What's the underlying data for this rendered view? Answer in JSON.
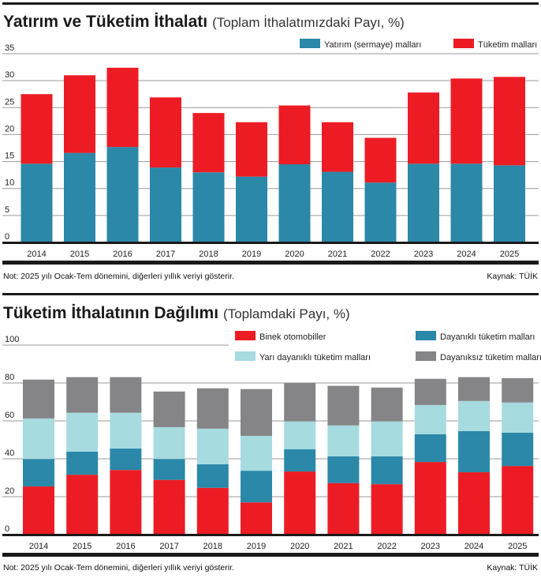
{
  "colors": {
    "teal": "#2b88a8",
    "red": "#ed1c24",
    "light_blue": "#a6dbe0",
    "gray": "#858587",
    "grid": "#9a9a9a",
    "axis": "#1a1a1a"
  },
  "chart_data": [
    {
      "type": "bar",
      "stacked": true,
      "title": "Yatırım ve Tüketim İthalatı",
      "subtitle": "(Toplam İthalatımızdaki Payı, %)",
      "categories": [
        "2014",
        "2015",
        "2016",
        "2017",
        "2018",
        "2019",
        "2020",
        "2021",
        "2022",
        "2023",
        "2024",
        "2025"
      ],
      "series": [
        {
          "name": "Yatırım (sermaye) malları",
          "color": "#2b88a8",
          "values": [
            14.6,
            16.6,
            17.7,
            13.9,
            13.0,
            12.2,
            14.5,
            13.1,
            11.1,
            14.6,
            14.6,
            14.3
          ]
        },
        {
          "name": "Tüketim malları",
          "color": "#ed1c24",
          "values": [
            12.9,
            14.4,
            14.7,
            13.0,
            11.0,
            10.1,
            10.9,
            9.2,
            8.3,
            13.2,
            15.8,
            16.4
          ]
        }
      ],
      "yticks": [
        "0",
        "5",
        "10",
        "15",
        "20",
        "25",
        "30",
        "35"
      ],
      "ylim": [
        0,
        35
      ],
      "grid": true,
      "legend": "top-right",
      "note": "Not: 2025 yılı Ocak-Tem dönemini, diğerleri yıllık veriyi gösterir.",
      "source": "Kaynak: TÜİK"
    },
    {
      "type": "bar",
      "stacked": true,
      "title": "Tüketim İthalatının Dağılımı",
      "subtitle": "(Toplamdaki Payı, %)",
      "categories": [
        "2014",
        "2015",
        "2016",
        "2017",
        "2018",
        "2019",
        "2020",
        "2021",
        "2022",
        "2023",
        "2024",
        "2025"
      ],
      "series": [
        {
          "name": "Binek otomobiller",
          "color": "#ed1c24",
          "values": [
            25.4,
            31.6,
            34.1,
            28.9,
            24.7,
            17.0,
            33.3,
            27.2,
            26.6,
            38.3,
            32.9,
            36.2
          ]
        },
        {
          "name": "Dayanıklı tüketim malları",
          "color": "#2b88a8",
          "values": [
            14.5,
            12.2,
            11.3,
            11.0,
            12.4,
            16.7,
            11.7,
            14.1,
            14.7,
            14.7,
            21.7,
            17.6
          ]
        },
        {
          "name": "Yarı dayanıklı tüketim malları",
          "color": "#a6dbe0",
          "values": [
            21.4,
            20.5,
            18.9,
            16.8,
            18.8,
            18.4,
            14.7,
            16.3,
            18.4,
            15.4,
            15.9,
            15.9
          ]
        },
        {
          "name": "Dayanıksız tüketim malları",
          "color": "#858587",
          "values": [
            20.5,
            18.8,
            18.8,
            18.8,
            21.3,
            24.7,
            20.4,
            20.9,
            17.9,
            13.8,
            12.6,
            12.9
          ]
        }
      ],
      "yticks": [
        "0",
        "20",
        "40",
        "60",
        "80",
        "100"
      ],
      "ylim": [
        0,
        100
      ],
      "grid": true,
      "legend": "top-right",
      "note": "Not: 2025 yılı Ocak-Tem dönemini, diğerleri yıllık veriyi gösterir.",
      "source": "Kaynak: TÜİK"
    }
  ]
}
